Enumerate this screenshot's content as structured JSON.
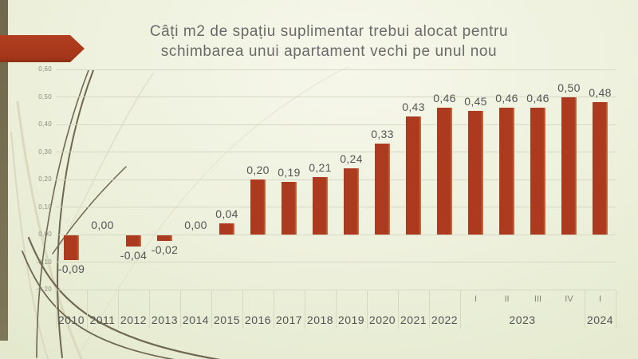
{
  "slide": {
    "title_line1": "Câți m2 de spațiu suplimentar trebui alocat pentru",
    "title_line2": "schimbarea unui apartament vechi pe unul nou"
  },
  "colors": {
    "bar": "#ac3a1e",
    "bar_edge": "#c97a48",
    "arrow": "#ab3a1e",
    "arrow_dark": "#96311708",
    "left_strip": "#7a7254",
    "title_text": "#6a6a6a",
    "label_text": "#555555",
    "axis_text": "#8c8c7e",
    "gridline": "#d5d9c4"
  },
  "chart_data": {
    "type": "bar",
    "title": "Câți m2 de spațiu suplimentar trebui alocat pentru schimbarea unui apartament vechi pe unul nou",
    "categories": [
      "2010",
      "2011",
      "2012",
      "2013",
      "2014",
      "2015",
      "2016",
      "2017",
      "2018",
      "2019",
      "2020",
      "2021",
      "2022",
      "2023 I",
      "2023 II",
      "2023 III",
      "2023 IV",
      "2024 I"
    ],
    "values": [
      -0.09,
      0.0,
      -0.04,
      -0.02,
      0.0,
      0.04,
      0.2,
      0.19,
      0.21,
      0.24,
      0.33,
      0.43,
      0.46,
      0.45,
      0.46,
      0.46,
      0.5,
      0.48
    ],
    "data_labels": [
      "-0,09",
      "0,00",
      "-0,04",
      "-0,02",
      "0,00",
      "0,04",
      "0,20",
      "0,19",
      "0,21",
      "0,24",
      "0,33",
      "0,43",
      "0,46",
      "0,45",
      "0,46",
      "0,46",
      "0,50",
      "0,48"
    ],
    "x_groups": [
      {
        "year": "2010",
        "quarters": []
      },
      {
        "year": "2011",
        "quarters": []
      },
      {
        "year": "2012",
        "quarters": []
      },
      {
        "year": "2013",
        "quarters": []
      },
      {
        "year": "2014",
        "quarters": []
      },
      {
        "year": "2015",
        "quarters": []
      },
      {
        "year": "2016",
        "quarters": []
      },
      {
        "year": "2017",
        "quarters": []
      },
      {
        "year": "2018",
        "quarters": []
      },
      {
        "year": "2019",
        "quarters": []
      },
      {
        "year": "2020",
        "quarters": []
      },
      {
        "year": "2021",
        "quarters": []
      },
      {
        "year": "2022",
        "quarters": []
      },
      {
        "year": "2023",
        "quarters": [
          "I",
          "II",
          "III",
          "IV"
        ]
      },
      {
        "year": "2024",
        "quarters": [
          "I"
        ]
      }
    ],
    "y_ticks": [
      {
        "value": 0.6,
        "label": "0,60"
      },
      {
        "value": 0.5,
        "label": "0,50"
      },
      {
        "value": 0.4,
        "label": "0,40"
      },
      {
        "value": 0.3,
        "label": "0,30"
      },
      {
        "value": 0.2,
        "label": "0,20"
      },
      {
        "value": 0.1,
        "label": "0,10"
      },
      {
        "value": 0.0,
        "label": "0,00"
      },
      {
        "value": -0.1,
        "label": "-0,10"
      },
      {
        "value": -0.2,
        "label": "-0,20"
      }
    ],
    "ylim": [
      -0.2,
      0.6
    ],
    "grid": true,
    "legend": false
  }
}
